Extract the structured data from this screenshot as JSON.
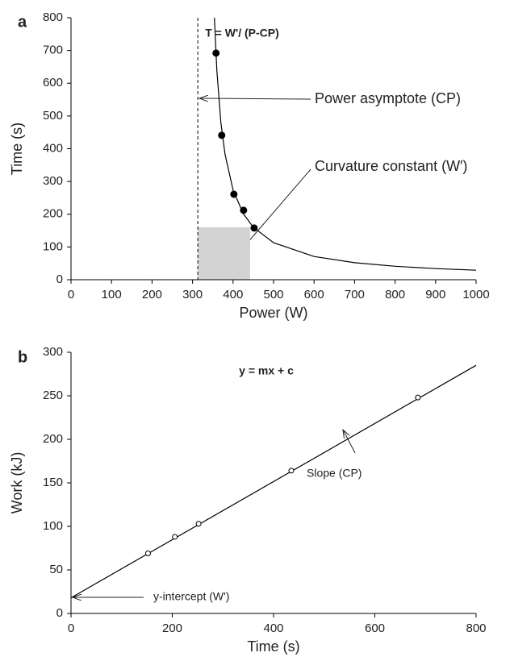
{
  "chart_data": [
    {
      "type": "scatter",
      "panel_label": "a",
      "title": "T = W'/ (P-CP)",
      "x_label": "Power (W)",
      "y_label": "Time (s)",
      "xlim": [
        0,
        1000
      ],
      "ylim": [
        0,
        800
      ],
      "xticks": [
        0,
        100,
        200,
        300,
        400,
        500,
        600,
        700,
        800,
        900,
        1000
      ],
      "yticks": [
        0,
        100,
        200,
        300,
        400,
        500,
        600,
        700,
        800
      ],
      "shaded_region": {
        "x": [
          313,
          442
        ],
        "y": [
          0,
          160
        ],
        "color": "#d3d3d3"
      },
      "asymptote": 313,
      "series": [
        {
          "type": "line",
          "color": "#000000",
          "x": [
            354,
            360,
            370,
            380,
            400,
            425,
            450,
            500,
            600,
            700,
            800,
            900,
            1000
          ],
          "values": [
            800,
            640,
            480,
            384,
            274,
            202,
            160,
            113,
            71,
            52,
            41,
            34,
            29
          ]
        },
        {
          "type": "scatter",
          "color": "#000000",
          "filled": true,
          "x": [
            358,
            372,
            402,
            426,
            452
          ],
          "values": [
            692,
            441,
            261,
            212,
            158
          ]
        }
      ],
      "annotations": [
        "Power asymptote (CP)",
        "Curvature constant (W′)"
      ]
    },
    {
      "type": "scatter",
      "panel_label": "b",
      "title": "y = mx + c",
      "x_label": "Time (s)",
      "y_label": "Work (kJ)",
      "xlim": [
        0,
        800
      ],
      "ylim": [
        0,
        300
      ],
      "xticks": [
        0,
        200,
        400,
        600,
        800
      ],
      "yticks": [
        0,
        50,
        100,
        150,
        200,
        250,
        300
      ],
      "series": [
        {
          "type": "line",
          "color": "#000000",
          "x": [
            0,
            800
          ],
          "values": [
            18,
            285
          ]
        },
        {
          "type": "scatter",
          "color": "#000000",
          "filled": false,
          "x": [
            152,
            205,
            252,
            435,
            685
          ],
          "values": [
            69,
            88,
            103,
            164,
            248
          ]
        }
      ],
      "annotations": [
        "Slope (CP)",
        "y-intercept (W')"
      ]
    }
  ]
}
